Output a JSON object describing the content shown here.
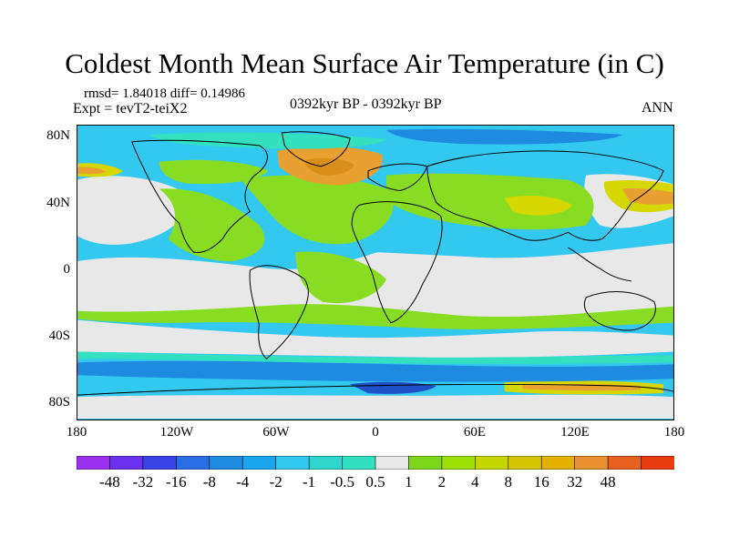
{
  "header": {
    "title": "Coldest Month Mean Surface Air Temperature (in C)",
    "stats": "rmsd= 1.84018 diff= 0.14986",
    "experiment": "Expt = tevT2-teiX2",
    "period": "0392kyr BP - 0392kyr BP",
    "season": "ANN"
  },
  "map": {
    "lat_labels": [
      "80N",
      "40N",
      "0",
      "40S",
      "80S"
    ],
    "lon_labels": [
      "180",
      "120W",
      "60W",
      "0",
      "60E",
      "120E",
      "180"
    ],
    "field_colors": {
      "ocean_blue": "#33c8f0",
      "neutral": "#e8e8e8",
      "green": "#88dd22",
      "yellow": "#d6d600",
      "orange": "#e8a030",
      "teal": "#33e0c0",
      "blue": "#1e8ae0"
    }
  },
  "colorbar": {
    "labels": [
      "-48",
      "-32",
      "-16",
      "-8",
      "-4",
      "-2",
      "-1",
      "-0.5",
      "0.5",
      "1",
      "2",
      "4",
      "8",
      "16",
      "32",
      "48"
    ],
    "colors": [
      "#9a30f0",
      "#6a32ee",
      "#3a42e6",
      "#2a6ee6",
      "#1e8ae0",
      "#1aa5ee",
      "#33c8f0",
      "#2ed6cc",
      "#33e0c0",
      "#e8e8e8",
      "#7cd61a",
      "#9ee000",
      "#c4d600",
      "#d6c400",
      "#e6b000",
      "#e89030",
      "#e86020",
      "#e83c10"
    ]
  }
}
